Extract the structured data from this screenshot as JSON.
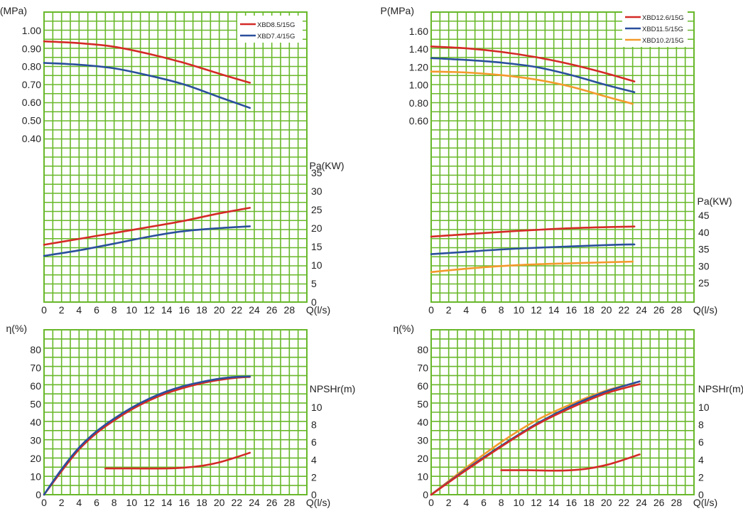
{
  "colors": {
    "grid": "#68b82a",
    "red": "#d42a26",
    "blue": "#2a4f9c",
    "orange": "#f39a2c"
  },
  "chart_data": [
    {
      "type": "line",
      "panel": "top-left",
      "x_unit": "Q(l/s)",
      "xlim": [
        0,
        30
      ],
      "xticks": [
        "0",
        "2",
        "4",
        "6",
        "8",
        "10",
        "12",
        "14",
        "16",
        "18",
        "20",
        "22",
        "24",
        "26",
        "28"
      ],
      "left_axis": {
        "label": "P(MPa)",
        "ticks": [
          "1.00",
          "0.90",
          "0.80",
          "0.70",
          "0.60",
          "0.50",
          "0.40"
        ],
        "range": [
          0.4,
          1.0
        ]
      },
      "right_axis": {
        "label": "Pa(KW)",
        "ticks": [
          "35",
          "30",
          "25",
          "20",
          "15",
          "10",
          "5",
          "0"
        ],
        "range": [
          0,
          35
        ]
      },
      "legend": [
        "XBD8.5/15G",
        "XBD7.4/15G"
      ],
      "legend_position": "top-right",
      "series": [
        {
          "name": "XBD8.5/15G",
          "color": "red",
          "axis": "left",
          "x": [
            0,
            4,
            8,
            12,
            16,
            20,
            23.5
          ],
          "y": [
            0.94,
            0.93,
            0.91,
            0.87,
            0.82,
            0.76,
            0.71
          ]
        },
        {
          "name": "XBD7.4/15G",
          "color": "blue",
          "axis": "left",
          "x": [
            0,
            4,
            8,
            12,
            16,
            20,
            23.5
          ],
          "y": [
            0.82,
            0.81,
            0.79,
            0.75,
            0.7,
            0.63,
            0.57
          ]
        },
        {
          "name": "XBD8.5/15G power",
          "color": "red",
          "axis": "right",
          "x": [
            0,
            4,
            8,
            12,
            16,
            20,
            23.5
          ],
          "y": [
            15.5,
            17.1,
            18.7,
            20.3,
            22,
            24,
            25.5
          ]
        },
        {
          "name": "XBD7.4/15G power",
          "color": "blue",
          "axis": "right",
          "x": [
            0,
            4,
            8,
            12,
            16,
            20,
            23.5
          ],
          "y": [
            12.5,
            14,
            15.8,
            17.7,
            19.2,
            20,
            20.5
          ]
        }
      ]
    },
    {
      "type": "line",
      "panel": "top-right",
      "x_unit": "Q(l/s)",
      "xlim": [
        0,
        30
      ],
      "xticks": [
        "0",
        "2",
        "4",
        "6",
        "8",
        "10",
        "12",
        "14",
        "16",
        "18",
        "20",
        "22",
        "24",
        "26",
        "28"
      ],
      "left_axis": {
        "label": "P(MPa)",
        "ticks": [
          "1.60",
          "1.40",
          "1.20",
          "1.00",
          "0.80",
          "0.60"
        ],
        "range": [
          0.6,
          1.6
        ]
      },
      "right_axis": {
        "label": "Pa(KW)",
        "ticks": [
          "45",
          "40",
          "35",
          "30",
          "25"
        ],
        "range": [
          20,
          45
        ]
      },
      "legend": [
        "XBD12.6/15G",
        "XBD11.5/15G",
        "XBD10.2/15G"
      ],
      "legend_position": "top-right",
      "series": [
        {
          "name": "XBD12.6/15G",
          "color": "red",
          "axis": "left",
          "x": [
            0,
            4,
            8,
            12,
            16,
            20,
            23.2
          ],
          "y": [
            1.43,
            1.41,
            1.37,
            1.31,
            1.23,
            1.13,
            1.04
          ]
        },
        {
          "name": "XBD11.5/15G",
          "color": "blue",
          "axis": "left",
          "x": [
            0,
            4,
            8,
            12,
            16,
            20,
            23.2
          ],
          "y": [
            1.3,
            1.28,
            1.25,
            1.2,
            1.11,
            1.0,
            0.92
          ]
        },
        {
          "name": "XBD10.2/15G",
          "color": "orange",
          "axis": "left",
          "x": [
            0,
            4,
            8,
            12,
            16,
            20,
            23
          ],
          "y": [
            1.15,
            1.14,
            1.11,
            1.06,
            0.98,
            0.87,
            0.79
          ]
        },
        {
          "name": "XBD12.6/15G power",
          "color": "red",
          "axis": "right",
          "x": [
            0,
            4,
            8,
            12,
            16,
            20,
            23.2
          ],
          "y": [
            38.7,
            39.4,
            40.1,
            40.7,
            41.2,
            41.5,
            41.7
          ]
        },
        {
          "name": "XBD11.5/15G power",
          "color": "blue",
          "axis": "right",
          "x": [
            0,
            4,
            8,
            12,
            16,
            20,
            23.2
          ],
          "y": [
            33.5,
            34.2,
            34.9,
            35.4,
            35.8,
            36.2,
            36.4
          ]
        },
        {
          "name": "XBD10.2/15G power",
          "color": "orange",
          "axis": "right",
          "x": [
            0,
            4,
            8,
            12,
            16,
            20,
            23
          ],
          "y": [
            28.2,
            29.2,
            30,
            30.5,
            30.8,
            31.1,
            31.3
          ]
        }
      ]
    },
    {
      "type": "line",
      "panel": "bottom-left",
      "x_unit": "Q(l/s)",
      "xlim": [
        0,
        30
      ],
      "xticks": [
        "0",
        "2",
        "4",
        "6",
        "8",
        "10",
        "12",
        "14",
        "16",
        "18",
        "20",
        "22",
        "24",
        "26",
        "28"
      ],
      "left_axis": {
        "label": "η(%)",
        "ticks": [
          "80",
          "70",
          "60",
          "50",
          "40",
          "30",
          "20",
          "10",
          "0"
        ],
        "range": [
          0,
          80
        ]
      },
      "right_axis": {
        "label": "NPSHr(m)",
        "ticks": [
          "10",
          "8",
          "6",
          "4",
          "2",
          "0"
        ],
        "range": [
          0,
          10
        ]
      },
      "series": [
        {
          "name": "XBD8.5/15G efficiency",
          "color": "red",
          "axis": "left",
          "x": [
            0,
            2,
            4,
            6,
            8,
            10,
            12,
            14,
            16,
            18,
            20,
            22,
            23.5
          ],
          "y": [
            0,
            13,
            25,
            34,
            41,
            47,
            52,
            56,
            59,
            61.5,
            63.3,
            64.5,
            65
          ]
        },
        {
          "name": "XBD7.4/15G efficiency",
          "color": "blue",
          "axis": "left",
          "x": [
            0,
            2,
            4,
            6,
            8,
            10,
            12,
            14,
            16,
            18,
            20,
            22,
            23.5
          ],
          "y": [
            0,
            14,
            26,
            35,
            42,
            48,
            53,
            57,
            60,
            62.2,
            64,
            65,
            65.2
          ]
        },
        {
          "name": "NPSHr",
          "color": "red",
          "axis": "right",
          "x": [
            7,
            10,
            14,
            16,
            18,
            20,
            22,
            23.5
          ],
          "y": [
            3,
            3,
            3,
            3.1,
            3.3,
            3.7,
            4.3,
            4.8
          ]
        }
      ]
    },
    {
      "type": "line",
      "panel": "bottom-right",
      "x_unit": "Q(l/s)",
      "xlim": [
        0,
        30
      ],
      "xticks": [
        "0",
        "2",
        "4",
        "6",
        "8",
        "10",
        "12",
        "14",
        "16",
        "18",
        "20",
        "22",
        "24",
        "26",
        "28"
      ],
      "left_axis": {
        "label": "η(%)",
        "ticks": [
          "80",
          "70",
          "60",
          "50",
          "40",
          "30",
          "20",
          "10",
          "0"
        ],
        "range": [
          0,
          80
        ]
      },
      "right_axis": {
        "label": "NPSHr(m)",
        "ticks": [
          "10",
          "8",
          "6",
          "4",
          "2",
          "0"
        ],
        "range": [
          0,
          10
        ]
      },
      "series": [
        {
          "name": "XBD10.2/15G efficiency",
          "color": "orange",
          "axis": "left",
          "x": [
            0,
            4,
            8,
            12,
            16,
            20,
            23.2
          ],
          "y": [
            0,
            15,
            29,
            41,
            50,
            57.5,
            61.5
          ]
        },
        {
          "name": "XBD11.5/15G efficiency",
          "color": "blue",
          "axis": "left",
          "x": [
            0,
            4,
            8,
            12,
            16,
            20,
            23.8
          ],
          "y": [
            0,
            14,
            27,
            39,
            49,
            57,
            62.5
          ]
        },
        {
          "name": "XBD12.6/15G efficiency",
          "color": "red",
          "axis": "left",
          "x": [
            0,
            4,
            8,
            12,
            16,
            20,
            23.8
          ],
          "y": [
            0,
            13.5,
            26.5,
            38.5,
            48,
            56,
            61
          ]
        },
        {
          "name": "NPSHr",
          "color": "red",
          "axis": "right",
          "x": [
            8,
            11,
            14,
            16,
            18,
            20,
            22,
            23.8
          ],
          "y": [
            2.8,
            2.8,
            2.75,
            2.8,
            3,
            3.4,
            4,
            4.6
          ]
        }
      ]
    }
  ]
}
